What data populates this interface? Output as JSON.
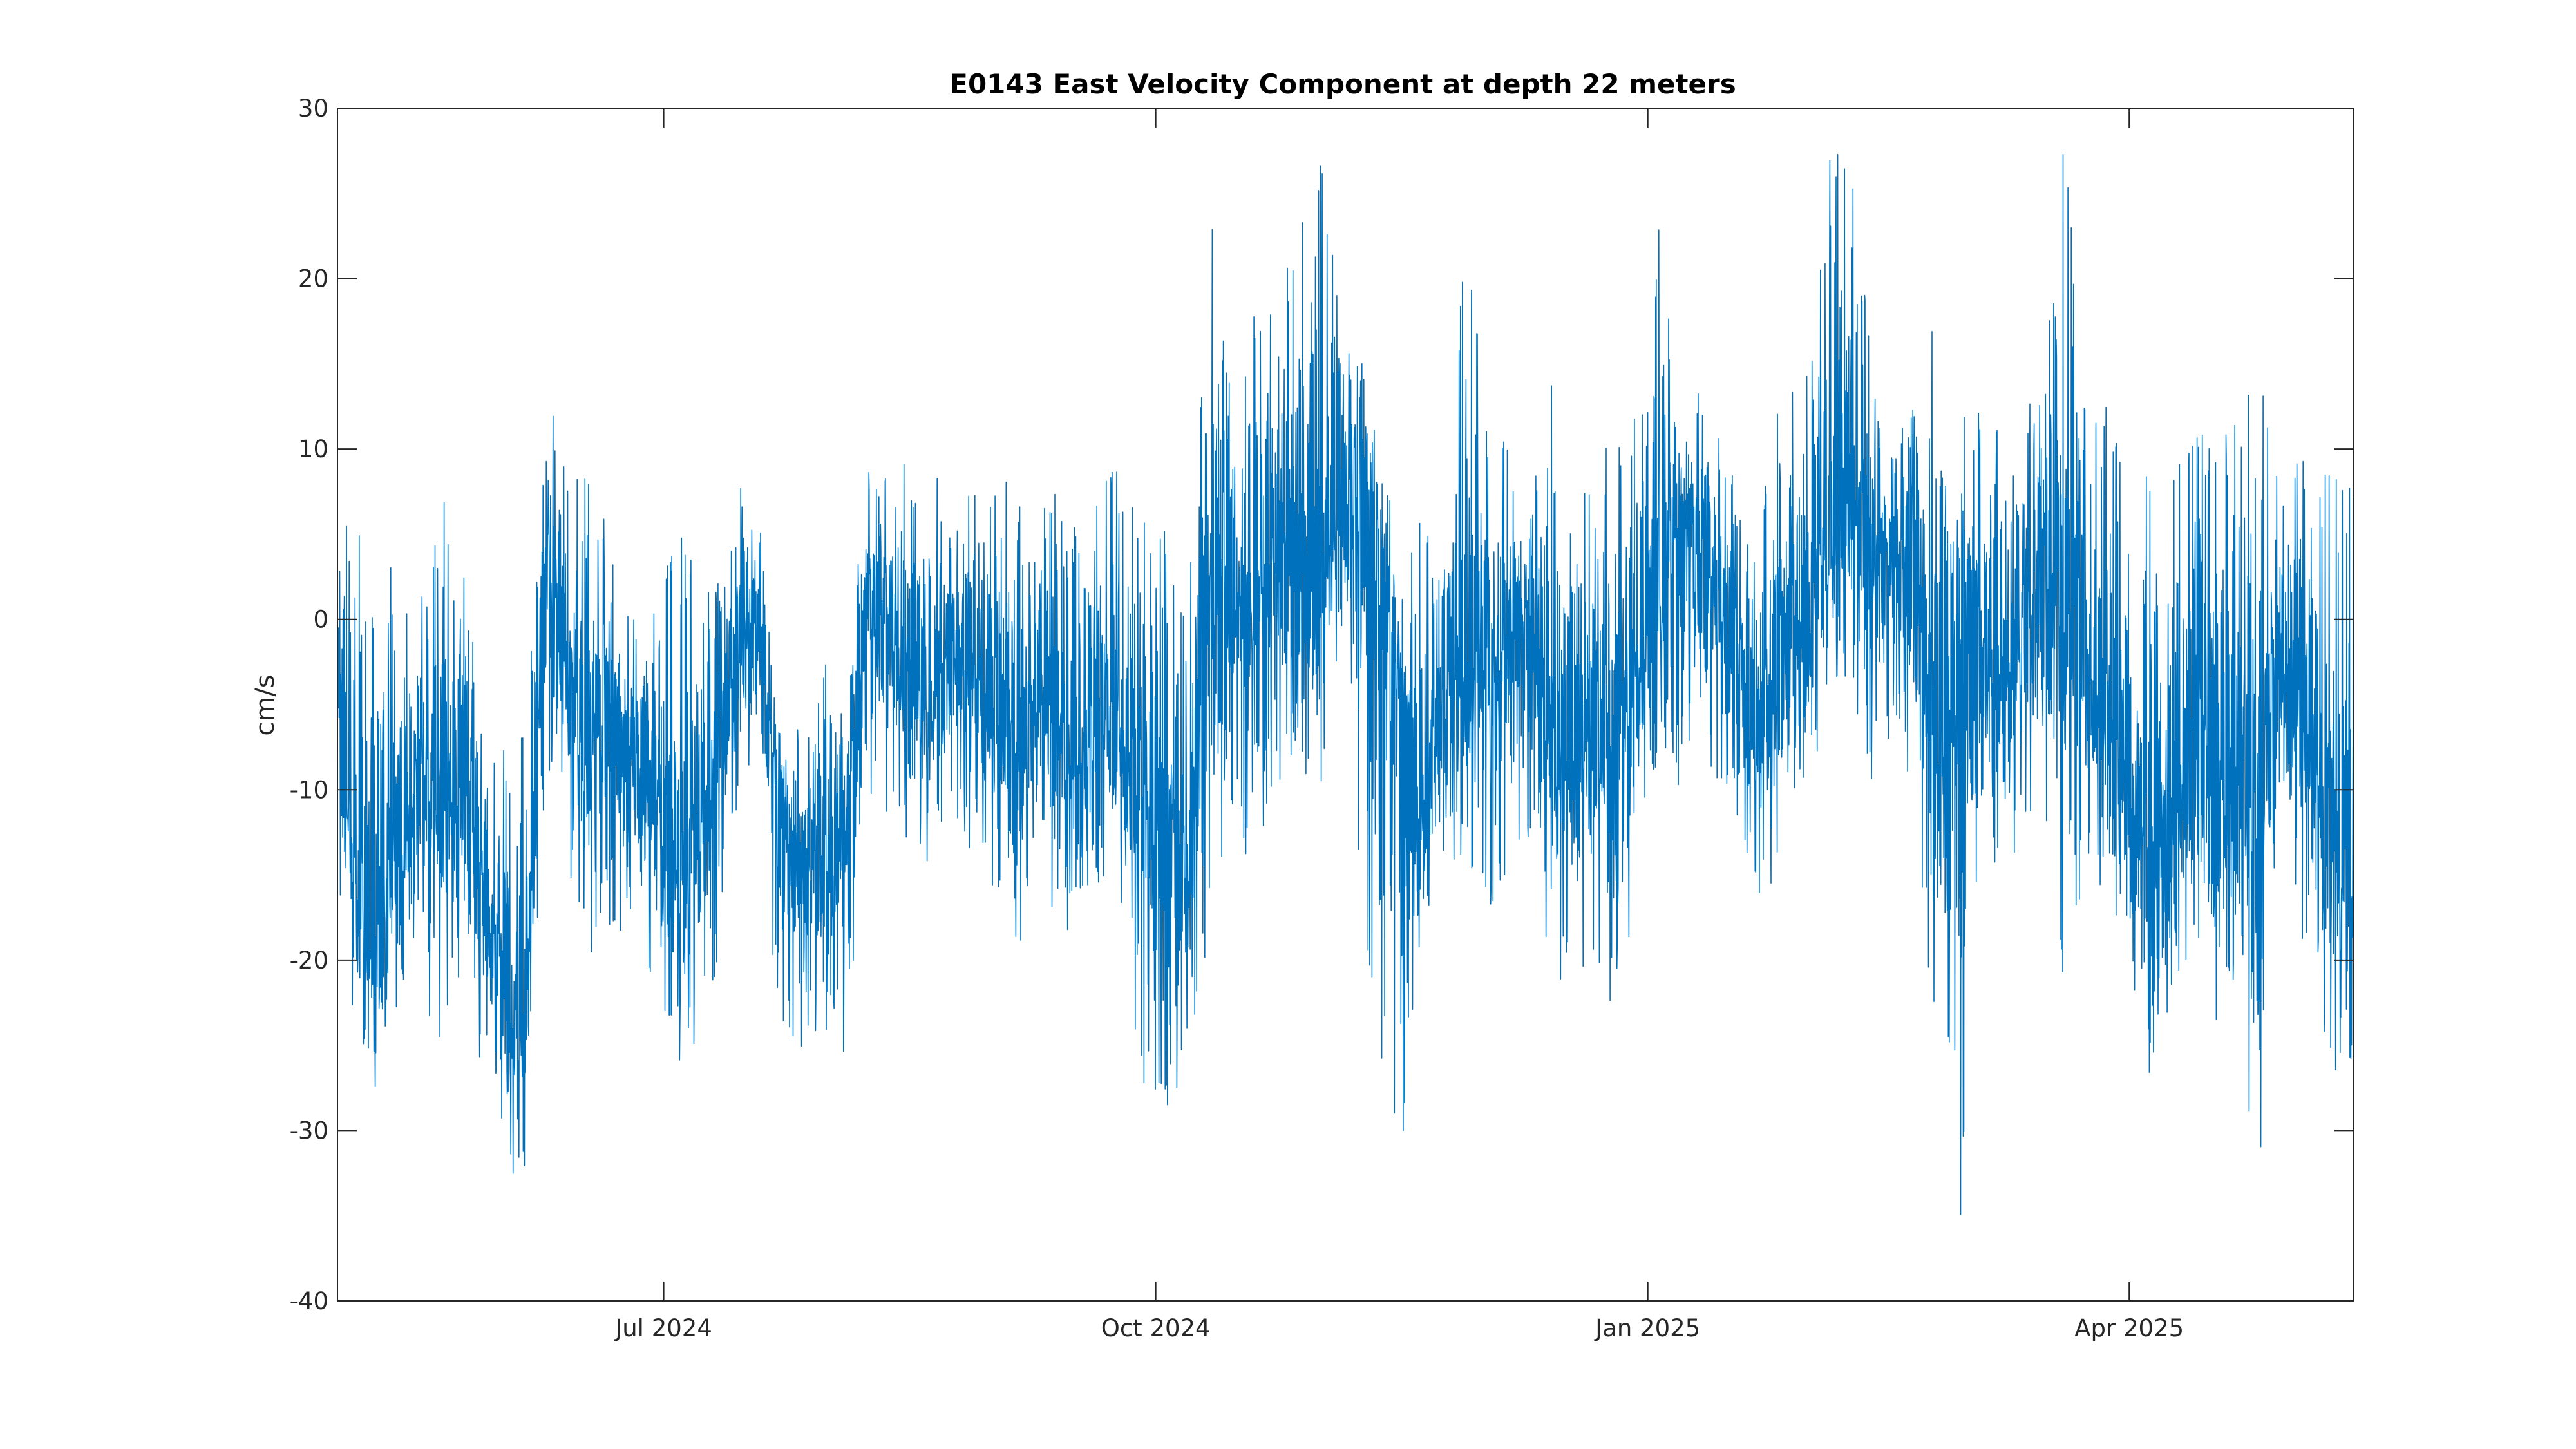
{
  "chart_data": {
    "type": "line",
    "title": "E0143 East Velocity Component at depth 22 meters",
    "xlabel": "",
    "ylabel": "cm/s",
    "x_range": [
      "2024-05-01",
      "2025-05-13"
    ],
    "ylim": [
      -40,
      30
    ],
    "y_ticks": [
      30,
      20,
      10,
      0,
      -10,
      -20,
      -30,
      -40
    ],
    "y_tick_labels": [
      "30",
      "20",
      "10",
      "0",
      "-10",
      "-20",
      "-30",
      "-40"
    ],
    "x_ticks": [
      "2024-07-01",
      "2024-10-01",
      "2025-01-01",
      "2025-04-01"
    ],
    "x_tick_labels": [
      "Jul 2024",
      "Oct 2024",
      "Jan 2025",
      "Apr 2025"
    ],
    "grid": false,
    "legend": "none",
    "color": "#0072BD",
    "series": [
      {
        "name": "",
        "x": [
          "2024-05-01",
          "2024-05-04",
          "2024-05-08",
          "2024-05-12",
          "2024-05-16",
          "2024-05-20",
          "2024-05-24",
          "2024-05-28",
          "2024-06-01",
          "2024-06-05",
          "2024-06-09",
          "2024-06-13",
          "2024-06-17",
          "2024-06-21",
          "2024-06-25",
          "2024-06-29",
          "2024-07-03",
          "2024-07-07",
          "2024-07-11",
          "2024-07-15",
          "2024-07-19",
          "2024-07-23",
          "2024-07-27",
          "2024-07-31",
          "2024-08-04",
          "2024-08-08",
          "2024-08-12",
          "2024-08-16",
          "2024-08-20",
          "2024-08-24",
          "2024-08-28",
          "2024-09-01",
          "2024-09-05",
          "2024-09-09",
          "2024-09-13",
          "2024-09-17",
          "2024-09-21",
          "2024-09-25",
          "2024-09-29",
          "2024-10-03",
          "2024-10-07",
          "2024-10-11",
          "2024-10-15",
          "2024-10-19",
          "2024-10-23",
          "2024-10-27",
          "2024-10-31",
          "2024-11-04",
          "2024-11-08",
          "2024-11-12",
          "2024-11-16",
          "2024-11-20",
          "2024-11-24",
          "2024-11-28",
          "2024-12-02",
          "2024-12-06",
          "2024-12-10",
          "2024-12-14",
          "2024-12-18",
          "2024-12-22",
          "2024-12-26",
          "2024-12-30",
          "2025-01-03",
          "2025-01-07",
          "2025-01-11",
          "2025-01-15",
          "2025-01-19",
          "2025-01-23",
          "2025-01-27",
          "2025-01-31",
          "2025-02-04",
          "2025-02-08",
          "2025-02-12",
          "2025-02-16",
          "2025-02-20",
          "2025-02-24",
          "2025-02-28",
          "2025-03-04",
          "2025-03-08",
          "2025-03-12",
          "2025-03-16",
          "2025-03-20",
          "2025-03-24",
          "2025-03-28",
          "2025-04-01",
          "2025-04-05",
          "2025-04-09",
          "2025-04-13",
          "2025-04-17",
          "2025-04-21",
          "2025-04-25",
          "2025-04-29",
          "2025-05-03",
          "2025-05-07",
          "2025-05-11"
        ],
        "mean": [
          -3,
          -14,
          -20,
          -15,
          -10,
          -12,
          -8,
          -16,
          -22,
          -25,
          5,
          -2,
          -8,
          -5,
          -9,
          -10,
          -16,
          -12,
          -8,
          1,
          -2,
          -12,
          -15,
          -14,
          -13,
          2,
          0,
          -4,
          -5,
          -2,
          -3,
          -5,
          -8,
          -3,
          -6,
          -9,
          -5,
          -8,
          -10,
          -12,
          -16,
          3,
          2,
          0,
          3,
          5,
          2,
          6,
          8,
          4,
          -5,
          -12,
          -4,
          -3,
          -2,
          -1,
          0,
          -6,
          -8,
          -7,
          -9,
          -3,
          2,
          4,
          5,
          0,
          -4,
          -6,
          -2,
          1,
          5,
          8,
          3,
          4,
          2,
          -3,
          -4,
          -1,
          -2,
          0,
          2,
          3,
          -2,
          -6,
          -10,
          -14,
          -12,
          -6,
          -10,
          -8,
          -12,
          -2,
          -5,
          -10,
          -14
        ],
        "high": [
          7,
          5,
          8,
          2,
          1,
          8,
          4,
          -4,
          -7,
          -5,
          15,
          8,
          9,
          5,
          0,
          2,
          5,
          5,
          2,
          9,
          8,
          -3,
          -6,
          -2,
          -2,
          10,
          10,
          9,
          10,
          7,
          8,
          10,
          8,
          7,
          8,
          5,
          10,
          8,
          7,
          5,
          0,
          25,
          15,
          18,
          20,
          22,
          28,
          26,
          16,
          10,
          4,
          8,
          6,
          23,
          12,
          10,
          7,
          14,
          13,
          8,
          12,
          14,
          23,
          15,
          14,
          10,
          7,
          9,
          15,
          15,
          29,
          27,
          15,
          12,
          13,
          21,
          13,
          14,
          11,
          12,
          14,
          30,
          14,
          13,
          8,
          10,
          9,
          13,
          10,
          12,
          15,
          8,
          11,
          9,
          8
        ],
        "low": [
          -17,
          -25,
          -28,
          -24,
          -24,
          -25,
          -21,
          -27,
          -31,
          -35,
          -8,
          -17,
          -20,
          -18,
          -19,
          -21,
          -27,
          -25,
          -21,
          -10,
          -12,
          -25,
          -27,
          -24,
          -26,
          -10,
          -12,
          -14,
          -15,
          -12,
          -14,
          -16,
          -20,
          -15,
          -18,
          -20,
          -16,
          -20,
          -28,
          -30,
          -27,
          -20,
          -12,
          -15,
          -10,
          -8,
          -12,
          -5,
          -14,
          -28,
          -32,
          -20,
          -15,
          -15,
          -18,
          -15,
          -14,
          -22,
          -22,
          -20,
          -25,
          -15,
          -8,
          -10,
          -8,
          -12,
          -15,
          -17,
          -14,
          -10,
          -6,
          -4,
          -10,
          -8,
          -11,
          -27,
          -38,
          -14,
          -16,
          -13,
          -12,
          -23,
          -14,
          -18,
          -22,
          -27,
          -24,
          -20,
          -24,
          -22,
          -34,
          -15,
          -18,
          -26,
          -27
        ]
      }
    ]
  }
}
